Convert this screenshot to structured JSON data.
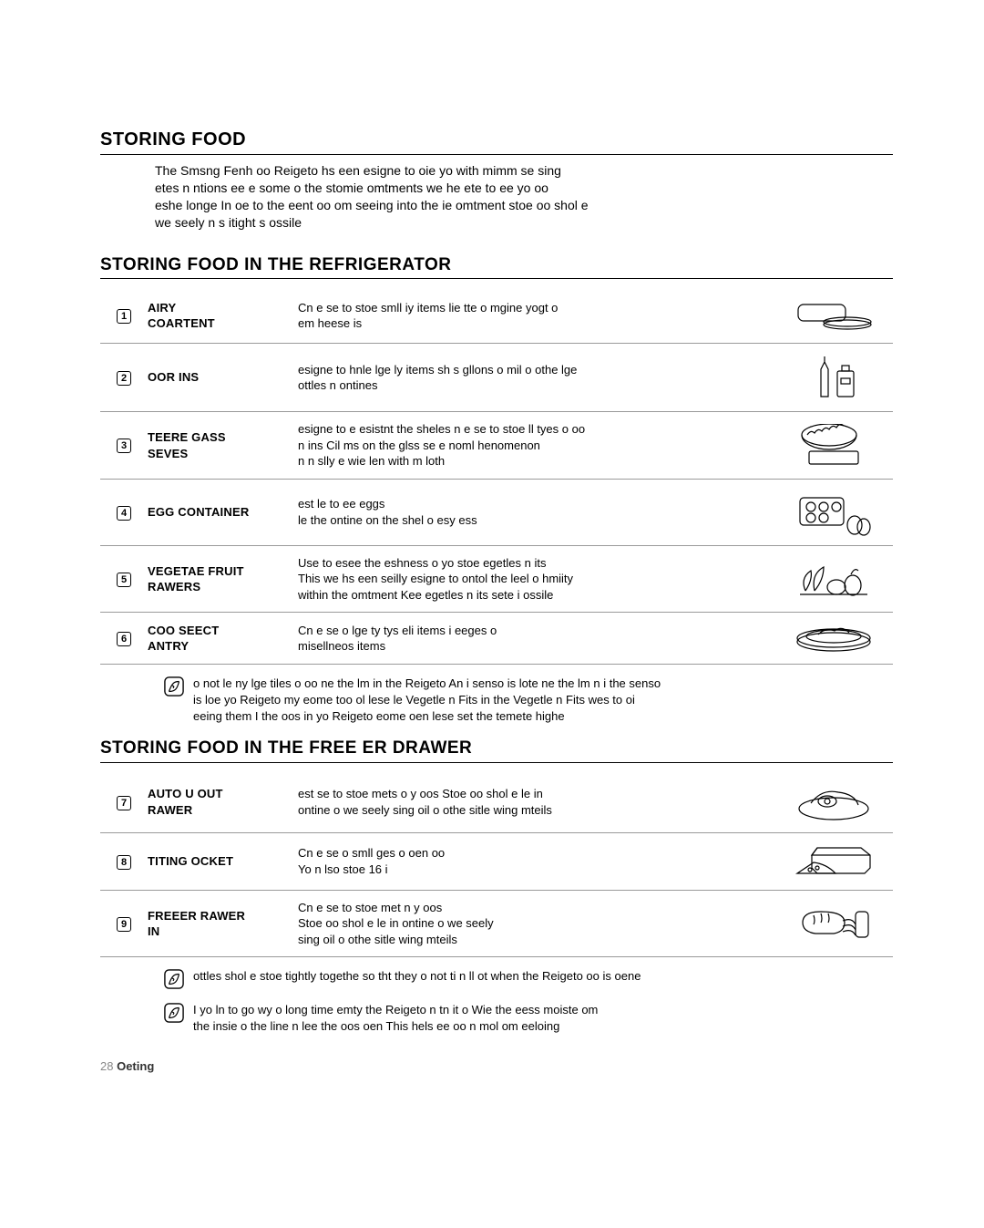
{
  "titles": {
    "main": "STORING FOOD",
    "sub1": "STORING FOOD IN THE REFRIGERATOR",
    "sub2": "STORING FOOD IN THE FREE    ER DRAWER"
  },
  "intro": "The Smsng Fenh oo Reigeto hs een esigne to oie yo with mimm se sing\netes n ntions ee e some o the stomie omtments we he ete to ee yo oo\neshe longe In oe to the eent oo om seeing into the ie omtment stoe oo shol e\nwe seely n s itight s ossile",
  "fridge_rows": [
    {
      "num": "1",
      "label": "AIRY\nCOARTENT",
      "desc": "Cn e se to stoe smll iy items lie tte o mgine yogt o\nem heese is",
      "icon": "dairy"
    },
    {
      "num": "2",
      "label": "OOR INS",
      "desc": "esigne to hnle lge ly items sh s gllons o mil o othe lge\nottles n ontines",
      "icon": "bottles"
    },
    {
      "num": "3",
      "label": "TEERE GASS\nSEVES",
      "desc": "esigne to e esistnt the sheles n e se to stoe ll tyes o oo\nn ins Cil ms on the glss se e  noml henomenon\nn n slly e wie len with  m loth",
      "icon": "bowl"
    },
    {
      "num": "4",
      "label": "EGG CONTAINER",
      "desc": "est le to ee eggs\nle the ontine on the shel o esy ess",
      "icon": "eggs"
    },
    {
      "num": "5",
      "label": "VEGETAE  FRUIT\nRAWERS",
      "desc": "Use to esee the eshness o yo stoe egetles n its\nThis we hs een seilly esigne to ontol the leel o hmiity\nwithin the omtment Kee egetles n its sete i ossile",
      "icon": "veg"
    },
    {
      "num": "6",
      "label": "COO SEECT\nANTRY",
      "desc": "Cn e se o lge ty tys eli items i eeges o\nmisellneos items",
      "icon": "tray"
    }
  ],
  "freezer_rows": [
    {
      "num": "7",
      "label": "AUTO U OUT\nRAWER",
      "desc": "est se to stoe mets o y oos Stoe oo shol e le in\nontine o we seely sing oil o othe sitle wing mteils",
      "icon": "meat"
    },
    {
      "num": "8",
      "label": "TITING OCKET",
      "desc": "Cn e se o smll ges o oen oo\nYo n lso stoe  16 i",
      "icon": "pizza"
    },
    {
      "num": "9",
      "label": "FREEER RAWER\nIN",
      "desc": "Cn e se to stoe met n y oos\nStoe oo shol e le in  ontine o we seely\nsing oil o othe sitle wing mteils",
      "icon": "bread"
    }
  ],
  "notes": {
    "n1": "o not le ny lge tiles o oo ne the lm in the Reigeto An i senso is lote ne the lm n i the senso\nis loe yo Reigeto my eome too ol lese le Vegetle n Fits in the Vegetle n Fits wes to oi\neeing them I the oos in yo Reigeto eome oen lese set the temete highe",
    "n2": "ottles shol e stoe tightly togethe so tht they o not ti n ll ot when the Reigeto oo is oene",
    "n3": "I yo ln to go wy o  long time emty the Reigeto n tn it o Wie the eess moiste om\nthe insie o the line n lee the oos oen This hels ee oo n mol om eeloing"
  },
  "footer": {
    "page": "28",
    "label": "Oeting"
  }
}
